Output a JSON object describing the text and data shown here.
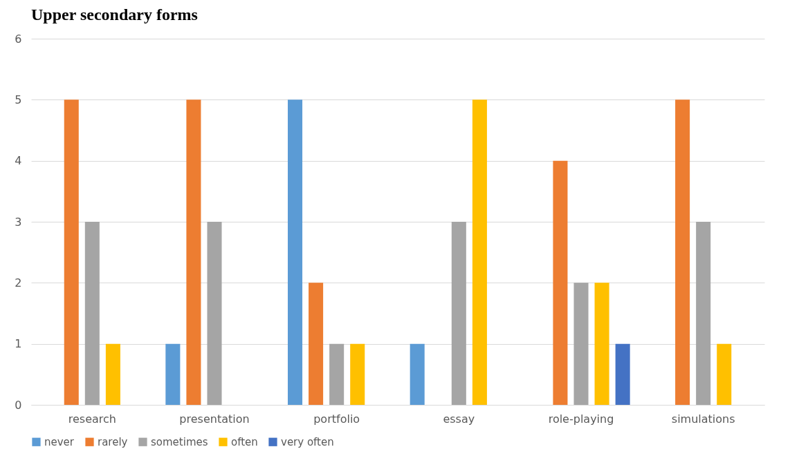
{
  "chart_data": {
    "type": "bar",
    "title": "Upper secondary forms",
    "categories": [
      "research",
      "presentation",
      "portfolio",
      "essay",
      "role-playing",
      "simulations"
    ],
    "series": [
      {
        "name": "never",
        "color": "#5b9bd5",
        "values": [
          0,
          1,
          5,
          1,
          0,
          0
        ]
      },
      {
        "name": "rarely",
        "color": "#ed7d31",
        "values": [
          5,
          5,
          2,
          0,
          4,
          5
        ]
      },
      {
        "name": "sometimes",
        "color": "#a5a5a5",
        "values": [
          3,
          3,
          1,
          3,
          2,
          3
        ]
      },
      {
        "name": "often",
        "color": "#ffc000",
        "values": [
          1,
          0,
          1,
          5,
          2,
          1
        ]
      },
      {
        "name": "very often",
        "color": "#4472c4",
        "values": [
          0,
          0,
          0,
          0,
          1,
          0
        ]
      }
    ],
    "ylim": [
      0,
      6
    ],
    "yticks": [
      0,
      1,
      2,
      3,
      4,
      5,
      6
    ],
    "grid": "y",
    "legend": "bottom"
  }
}
